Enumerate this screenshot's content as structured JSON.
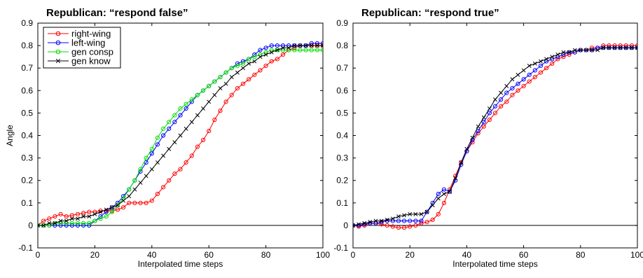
{
  "chart_data": [
    {
      "type": "line",
      "title": "Republican: “respond false”",
      "xlabel": "Interpolated time steps",
      "ylabel": "Angle",
      "xlim": [
        0,
        100
      ],
      "ylim": [
        -0.1,
        0.9
      ],
      "xticks": [
        0,
        20,
        40,
        60,
        80,
        100
      ],
      "yticks": [
        -0.1,
        0,
        0.1,
        0.2,
        0.3,
        0.4,
        0.5,
        0.6,
        0.7,
        0.8,
        0.9
      ],
      "reference_line_y": 0,
      "legend": "top-left",
      "series": [
        {
          "name": "right-wing",
          "color": "#ff0000",
          "marker": "circle",
          "x": [
            0,
            2,
            4,
            6,
            8,
            10,
            12,
            14,
            16,
            18,
            20,
            22,
            24,
            26,
            28,
            30,
            32,
            34,
            36,
            38,
            40,
            42,
            44,
            46,
            48,
            50,
            52,
            54,
            56,
            58,
            60,
            62,
            64,
            66,
            68,
            70,
            72,
            74,
            76,
            78,
            80,
            82,
            84,
            86,
            88,
            90,
            92,
            94,
            96,
            98,
            100
          ],
          "y": [
            0,
            0.02,
            0.03,
            0.04,
            0.05,
            0.04,
            0.045,
            0.05,
            0.055,
            0.06,
            0.06,
            0.065,
            0.065,
            0.065,
            0.07,
            0.08,
            0.1,
            0.1,
            0.1,
            0.1,
            0.11,
            0.14,
            0.17,
            0.2,
            0.23,
            0.25,
            0.28,
            0.31,
            0.35,
            0.38,
            0.42,
            0.47,
            0.51,
            0.55,
            0.58,
            0.61,
            0.63,
            0.65,
            0.67,
            0.69,
            0.71,
            0.73,
            0.74,
            0.76,
            0.78,
            0.79,
            0.8,
            0.8,
            0.8,
            0.8,
            0.8
          ]
        },
        {
          "name": "left-wing",
          "color": "#0000ff",
          "marker": "circle",
          "x": [
            0,
            2,
            4,
            6,
            8,
            10,
            12,
            14,
            16,
            18,
            20,
            22,
            24,
            26,
            28,
            30,
            32,
            34,
            36,
            38,
            40,
            42,
            44,
            46,
            48,
            50,
            52,
            54,
            56,
            58,
            60,
            62,
            64,
            66,
            68,
            70,
            72,
            74,
            76,
            78,
            80,
            82,
            84,
            86,
            88,
            90,
            92,
            94,
            96,
            98,
            100
          ],
          "y": [
            0,
            0,
            0,
            0,
            0,
            0,
            0,
            0,
            0,
            0,
            0.02,
            0.04,
            0.06,
            0.08,
            0.1,
            0.13,
            0.16,
            0.2,
            0.24,
            0.28,
            0.32,
            0.36,
            0.4,
            0.43,
            0.46,
            0.49,
            0.52,
            0.55,
            0.58,
            0.6,
            0.62,
            0.64,
            0.66,
            0.68,
            0.7,
            0.72,
            0.73,
            0.74,
            0.76,
            0.78,
            0.79,
            0.8,
            0.8,
            0.8,
            0.8,
            0.8,
            0.8,
            0.8,
            0.81,
            0.81,
            0.81
          ]
        },
        {
          "name": "gen consp",
          "color": "#00dd00",
          "marker": "circle",
          "x": [
            0,
            2,
            4,
            6,
            8,
            10,
            12,
            14,
            16,
            18,
            20,
            22,
            24,
            26,
            28,
            30,
            32,
            34,
            36,
            38,
            40,
            42,
            44,
            46,
            48,
            50,
            52,
            54,
            56,
            58,
            60,
            62,
            64,
            66,
            68,
            70,
            72,
            74,
            76,
            78,
            80,
            82,
            84,
            86,
            88,
            90,
            92,
            94,
            96,
            98,
            100
          ],
          "y": [
            0,
            0,
            0,
            0.01,
            0.01,
            0.01,
            0.01,
            0.01,
            0.01,
            0.01,
            0.02,
            0.03,
            0.04,
            0.06,
            0.09,
            0.12,
            0.16,
            0.2,
            0.25,
            0.3,
            0.34,
            0.39,
            0.43,
            0.46,
            0.49,
            0.52,
            0.54,
            0.56,
            0.58,
            0.6,
            0.62,
            0.64,
            0.66,
            0.68,
            0.7,
            0.71,
            0.72,
            0.74,
            0.75,
            0.76,
            0.77,
            0.78,
            0.78,
            0.78,
            0.78,
            0.78,
            0.78,
            0.78,
            0.78,
            0.78,
            0.78
          ]
        },
        {
          "name": "gen know",
          "color": "#000000",
          "marker": "x",
          "x": [
            0,
            2,
            4,
            6,
            8,
            10,
            12,
            14,
            16,
            18,
            20,
            22,
            24,
            26,
            28,
            30,
            32,
            34,
            36,
            38,
            40,
            42,
            44,
            46,
            48,
            50,
            52,
            54,
            56,
            58,
            60,
            62,
            64,
            66,
            68,
            70,
            72,
            74,
            76,
            78,
            80,
            82,
            84,
            86,
            88,
            90,
            92,
            94,
            96,
            98,
            100
          ],
          "y": [
            0,
            0,
            0.01,
            0.01,
            0.02,
            0.02,
            0.03,
            0.03,
            0.04,
            0.04,
            0.05,
            0.06,
            0.07,
            0.08,
            0.09,
            0.11,
            0.13,
            0.16,
            0.19,
            0.22,
            0.25,
            0.28,
            0.31,
            0.34,
            0.37,
            0.4,
            0.43,
            0.46,
            0.49,
            0.52,
            0.55,
            0.58,
            0.61,
            0.63,
            0.66,
            0.68,
            0.7,
            0.72,
            0.73,
            0.75,
            0.76,
            0.77,
            0.78,
            0.79,
            0.79,
            0.8,
            0.8,
            0.8,
            0.8,
            0.8,
            0.8
          ]
        }
      ]
    },
    {
      "type": "line",
      "title": "Republican: “respond true”",
      "xlabel": "Interpolated time steps",
      "ylabel": "",
      "xlim": [
        0,
        100
      ],
      "ylim": [
        -0.1,
        0.9
      ],
      "xticks": [
        0,
        20,
        40,
        60,
        80,
        100
      ],
      "yticks": [
        -0.1,
        0,
        0.1,
        0.2,
        0.3,
        0.4,
        0.5,
        0.6,
        0.7,
        0.8,
        0.9
      ],
      "reference_line_y": 0,
      "series": [
        {
          "name": "right-wing",
          "color": "#ff0000",
          "marker": "circle",
          "x": [
            0,
            2,
            4,
            6,
            8,
            10,
            12,
            14,
            16,
            18,
            20,
            22,
            24,
            26,
            28,
            30,
            32,
            34,
            36,
            38,
            40,
            42,
            44,
            46,
            48,
            50,
            52,
            54,
            56,
            58,
            60,
            62,
            64,
            66,
            68,
            70,
            72,
            74,
            76,
            78,
            80,
            82,
            84,
            86,
            88,
            90,
            92,
            94,
            96,
            98,
            100
          ],
          "y": [
            0,
            -0.005,
            0,
            0.01,
            0.01,
            0.005,
            0,
            -0.005,
            -0.01,
            -0.01,
            -0.005,
            0,
            0.01,
            0.015,
            0.025,
            0.05,
            0.1,
            0.16,
            0.22,
            0.28,
            0.33,
            0.37,
            0.41,
            0.44,
            0.47,
            0.5,
            0.53,
            0.55,
            0.58,
            0.6,
            0.62,
            0.64,
            0.66,
            0.68,
            0.7,
            0.72,
            0.74,
            0.75,
            0.76,
            0.77,
            0.78,
            0.78,
            0.79,
            0.79,
            0.8,
            0.8,
            0.8,
            0.8,
            0.8,
            0.8,
            0.8
          ]
        },
        {
          "name": "left-wing",
          "color": "#0000ff",
          "marker": "circle",
          "x": [
            0,
            2,
            4,
            6,
            8,
            10,
            12,
            14,
            16,
            18,
            20,
            22,
            24,
            26,
            28,
            30,
            32,
            34,
            36,
            38,
            40,
            42,
            44,
            46,
            48,
            50,
            52,
            54,
            56,
            58,
            60,
            62,
            64,
            66,
            68,
            70,
            72,
            74,
            76,
            78,
            80,
            82,
            84,
            86,
            88,
            90,
            92,
            94,
            96,
            98,
            100
          ],
          "y": [
            0,
            0,
            0.005,
            0.01,
            0.01,
            0.015,
            0.02,
            0.02,
            0.02,
            0.02,
            0.02,
            0.02,
            0.02,
            0.06,
            0.1,
            0.14,
            0.16,
            0.15,
            0.2,
            0.27,
            0.33,
            0.38,
            0.42,
            0.46,
            0.5,
            0.53,
            0.56,
            0.59,
            0.61,
            0.63,
            0.65,
            0.67,
            0.69,
            0.71,
            0.73,
            0.74,
            0.75,
            0.76,
            0.77,
            0.77,
            0.78,
            0.78,
            0.78,
            0.79,
            0.79,
            0.79,
            0.79,
            0.79,
            0.79,
            0.79,
            0.79
          ]
        },
        {
          "name": "gen know",
          "color": "#000000",
          "marker": "x",
          "x": [
            0,
            2,
            4,
            6,
            8,
            10,
            12,
            14,
            16,
            18,
            20,
            22,
            24,
            26,
            28,
            30,
            32,
            34,
            36,
            38,
            40,
            42,
            44,
            46,
            48,
            50,
            52,
            54,
            56,
            58,
            60,
            62,
            64,
            66,
            68,
            70,
            72,
            74,
            76,
            78,
            80,
            82,
            84,
            86,
            88,
            90,
            92,
            94,
            96,
            98,
            100
          ],
          "y": [
            0,
            0.005,
            0.01,
            0.015,
            0.02,
            0.02,
            0.025,
            0.03,
            0.04,
            0.045,
            0.05,
            0.05,
            0.05,
            0.06,
            0.09,
            0.12,
            0.14,
            0.15,
            0.21,
            0.28,
            0.34,
            0.39,
            0.44,
            0.48,
            0.52,
            0.56,
            0.59,
            0.62,
            0.65,
            0.67,
            0.69,
            0.71,
            0.72,
            0.73,
            0.74,
            0.75,
            0.76,
            0.77,
            0.77,
            0.78,
            0.78,
            0.78,
            0.78,
            0.78,
            0.79,
            0.79,
            0.79,
            0.79,
            0.79,
            0.79,
            0.79
          ]
        }
      ]
    }
  ]
}
